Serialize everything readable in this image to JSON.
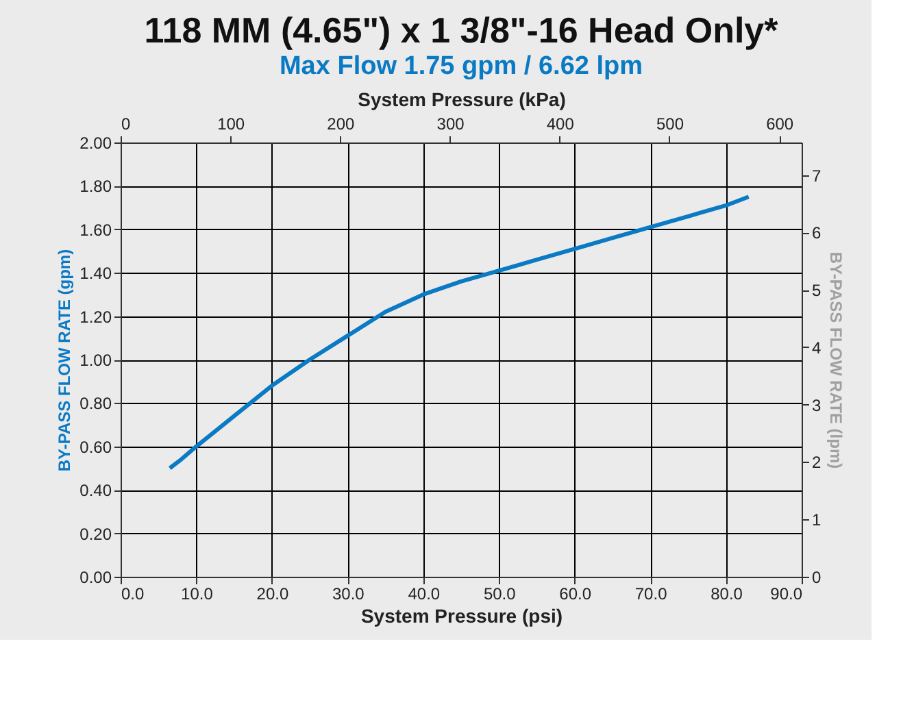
{
  "chart_data": {
    "type": "line",
    "title": "118 MM (4.65\") x 1 3/8\"-16 Head Only*",
    "subtitle": "Max Flow 1.75 gpm / 6.62 lpm",
    "xlabel": "System Pressure (psi)",
    "ylabel": "BY-PASS FLOW RATE (gpm)",
    "y2label": "BY-PASS FLOW RATE (lpm)",
    "x2label": "System Pressure (kPa)",
    "x": [
      6.5,
      8,
      10,
      12.5,
      15,
      20,
      25,
      30,
      35,
      40,
      45,
      50,
      55,
      60,
      65,
      70,
      75,
      80,
      83
    ],
    "series": [
      {
        "color": "#0a7ac4",
        "values": [
          0.5,
          0.54,
          0.6,
          0.67,
          0.74,
          0.88,
          1.0,
          1.11,
          1.22,
          1.3,
          1.36,
          1.41,
          1.46,
          1.51,
          1.56,
          1.61,
          1.66,
          1.71,
          1.75
        ]
      }
    ],
    "xlim": [
      0,
      90
    ],
    "ylim": [
      0,
      2.0
    ],
    "x2lim": [
      0,
      620.5
    ],
    "y2lim": [
      0,
      7.57
    ],
    "xticks": [
      {
        "value": 0,
        "label": "0.0"
      },
      {
        "value": 10,
        "label": "10.0"
      },
      {
        "value": 20,
        "label": "20.0"
      },
      {
        "value": 30,
        "label": "30.0"
      },
      {
        "value": 40,
        "label": "40.0"
      },
      {
        "value": 50,
        "label": "50.0"
      },
      {
        "value": 60,
        "label": "60.0"
      },
      {
        "value": 70,
        "label": "70.0"
      },
      {
        "value": 80,
        "label": "80.0"
      },
      {
        "value": 90,
        "label": "90.0"
      }
    ],
    "yticks": [
      {
        "value": 0,
        "label": "0.00"
      },
      {
        "value": 0.2,
        "label": "0.20"
      },
      {
        "value": 0.4,
        "label": "0.40"
      },
      {
        "value": 0.6,
        "label": "0.60"
      },
      {
        "value": 0.8,
        "label": "0.80"
      },
      {
        "value": 1.0,
        "label": "1.00"
      },
      {
        "value": 1.2,
        "label": "1.20"
      },
      {
        "value": 1.4,
        "label": "1.40"
      },
      {
        "value": 1.6,
        "label": "1.60"
      },
      {
        "value": 1.8,
        "label": "1.80"
      },
      {
        "value": 2.0,
        "label": "2.00"
      }
    ],
    "x2ticks": [
      0,
      100,
      200,
      300,
      400,
      500,
      600
    ],
    "y2ticks": [
      0,
      1,
      2,
      3,
      4,
      5,
      6,
      7
    ],
    "grid": true,
    "marker": "none",
    "line_style": "solid"
  }
}
